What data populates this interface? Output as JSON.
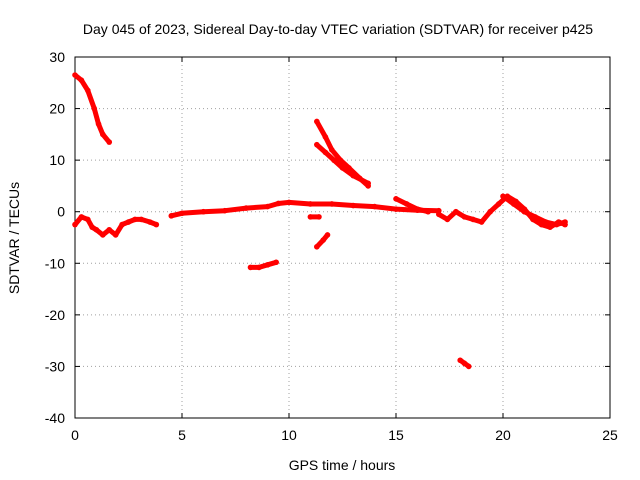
{
  "chart_data": {
    "type": "scatter",
    "title": "Day 045 of 2023, Sidereal Day-to-day VTEC variation (SDTVAR) for receiver p425",
    "xlabel": "GPS time / hours",
    "ylabel": "SDTVAR / TECUs",
    "xlim": [
      0,
      25
    ],
    "ylim": [
      -40,
      30
    ],
    "xticks": [
      0,
      5,
      10,
      15,
      20,
      25
    ],
    "yticks": [
      -40,
      -30,
      -20,
      -10,
      0,
      10,
      20,
      30
    ],
    "grid": true,
    "series_color": "#ff0000",
    "series": [
      {
        "name": "arc-1",
        "x": [
          0.0,
          0.3,
          0.6,
          0.9,
          1.1,
          1.3,
          1.6
        ],
        "y": [
          26.5,
          25.5,
          23.5,
          20.0,
          17.0,
          15.0,
          13.5
        ]
      },
      {
        "name": "arc-2",
        "x": [
          0.0,
          0.3,
          0.6,
          0.8,
          1.0,
          1.3,
          1.6,
          1.9,
          2.2,
          2.5,
          2.8,
          3.1,
          3.5,
          3.8
        ],
        "y": [
          -2.5,
          -1.0,
          -1.5,
          -3.0,
          -3.5,
          -4.5,
          -3.5,
          -4.5,
          -2.5,
          -2.0,
          -1.5,
          -1.5,
          -2.0,
          -2.5
        ]
      },
      {
        "name": "arc-3",
        "x": [
          4.5,
          5.0,
          6.0,
          7.0,
          8.0,
          9.0,
          9.5,
          10.0,
          11.0,
          12.0,
          13.0,
          14.0,
          15.0,
          16.0,
          17.0
        ],
        "y": [
          -0.8,
          -0.3,
          0.0,
          0.2,
          0.7,
          1.0,
          1.6,
          1.8,
          1.5,
          1.5,
          1.2,
          1.0,
          0.5,
          0.3,
          0.2
        ]
      },
      {
        "name": "arc-4",
        "x": [
          11.3,
          11.7,
          12.0,
          12.4,
          12.8,
          13.3,
          13.7
        ],
        "y": [
          17.5,
          14.5,
          12.0,
          10.0,
          8.5,
          6.5,
          5.0
        ]
      },
      {
        "name": "arc-5",
        "x": [
          11.3,
          11.7,
          12.1,
          12.5,
          13.0,
          13.7
        ],
        "y": [
          13.0,
          11.5,
          10.0,
          8.5,
          7.0,
          5.5
        ]
      },
      {
        "name": "arc-6",
        "x": [
          15.0,
          15.5,
          16.0,
          16.5
        ],
        "y": [
          2.5,
          1.5,
          0.5,
          0.0
        ]
      },
      {
        "name": "arc-7",
        "x": [
          17.0,
          17.4,
          17.8,
          18.2,
          18.6,
          19.0,
          19.4,
          19.8,
          20.2,
          20.6,
          21.0,
          21.4,
          21.8,
          22.2,
          22.6,
          22.9
        ],
        "y": [
          -0.5,
          -1.5,
          0.0,
          -1.0,
          -1.5,
          -2.0,
          0.0,
          1.5,
          3.0,
          2.0,
          0.5,
          -1.5,
          -2.5,
          -3.0,
          -2.0,
          -2.5
        ]
      },
      {
        "name": "arc-8",
        "x": [
          20.0,
          20.5,
          21.0,
          21.5,
          22.0,
          22.5,
          22.9
        ],
        "y": [
          3.0,
          1.5,
          0.0,
          -1.0,
          -2.0,
          -2.5,
          -2.0
        ]
      },
      {
        "name": "arc-9",
        "x": [
          8.2,
          8.6,
          9.0,
          9.4
        ],
        "y": [
          -10.8,
          -10.8,
          -10.3,
          -9.8
        ]
      },
      {
        "name": "arc-10",
        "x": [
          11.3,
          11.6,
          11.8
        ],
        "y": [
          -6.8,
          -5.5,
          -4.5
        ]
      },
      {
        "name": "arc-11",
        "x": [
          11.0,
          11.4
        ],
        "y": [
          -1.0,
          -1.0
        ]
      },
      {
        "name": "arc-12",
        "x": [
          18.0,
          18.2,
          18.4
        ],
        "y": [
          -28.8,
          -29.4,
          -30.0
        ]
      }
    ]
  }
}
